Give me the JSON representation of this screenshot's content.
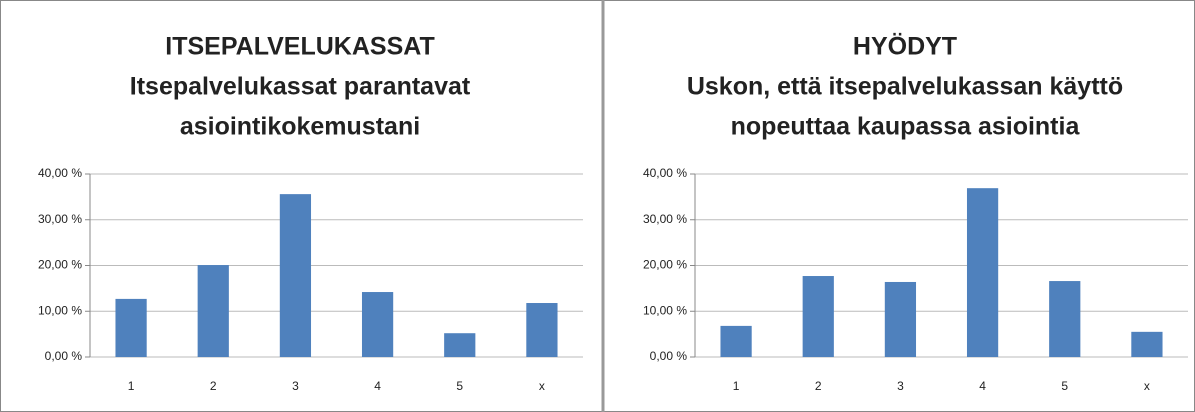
{
  "chart_data": [
    {
      "type": "bar",
      "title": [
        "ITSEPALVELUKASSAT",
        "Itsepalvelukassat parantavat",
        "asiointikokemustani"
      ],
      "categories": [
        "1",
        "2",
        "3",
        "4",
        "5",
        "x"
      ],
      "values": [
        12.7,
        20.1,
        35.6,
        14.2,
        5.2,
        11.8
      ],
      "color": "#4f81bd",
      "ylim": [
        0,
        40
      ],
      "yticks": [
        {
          "value": 0,
          "label": "0,00 %"
        },
        {
          "value": 10,
          "label": "10,00 %"
        },
        {
          "value": 20,
          "label": "20,00 %"
        },
        {
          "value": 30,
          "label": "30,00 %"
        },
        {
          "value": 40,
          "label": "40,00 %"
        }
      ],
      "grid": true
    },
    {
      "type": "bar",
      "title": [
        "HYÖDYT",
        "Uskon, että itsepalvelukassan käyttö",
        "nopeuttaa kaupassa asiointia"
      ],
      "categories": [
        "1",
        "2",
        "3",
        "4",
        "5",
        "x"
      ],
      "values": [
        6.8,
        17.7,
        16.4,
        36.9,
        16.6,
        5.5
      ],
      "color": "#4f81bd",
      "ylim": [
        0,
        40
      ],
      "yticks": [
        {
          "value": 0,
          "label": "0,00 %"
        },
        {
          "value": 10,
          "label": "10,00 %"
        },
        {
          "value": 20,
          "label": "20,00 %"
        },
        {
          "value": 30,
          "label": "30,00 %"
        },
        {
          "value": 40,
          "label": "40,00 %"
        }
      ],
      "grid": true
    }
  ]
}
